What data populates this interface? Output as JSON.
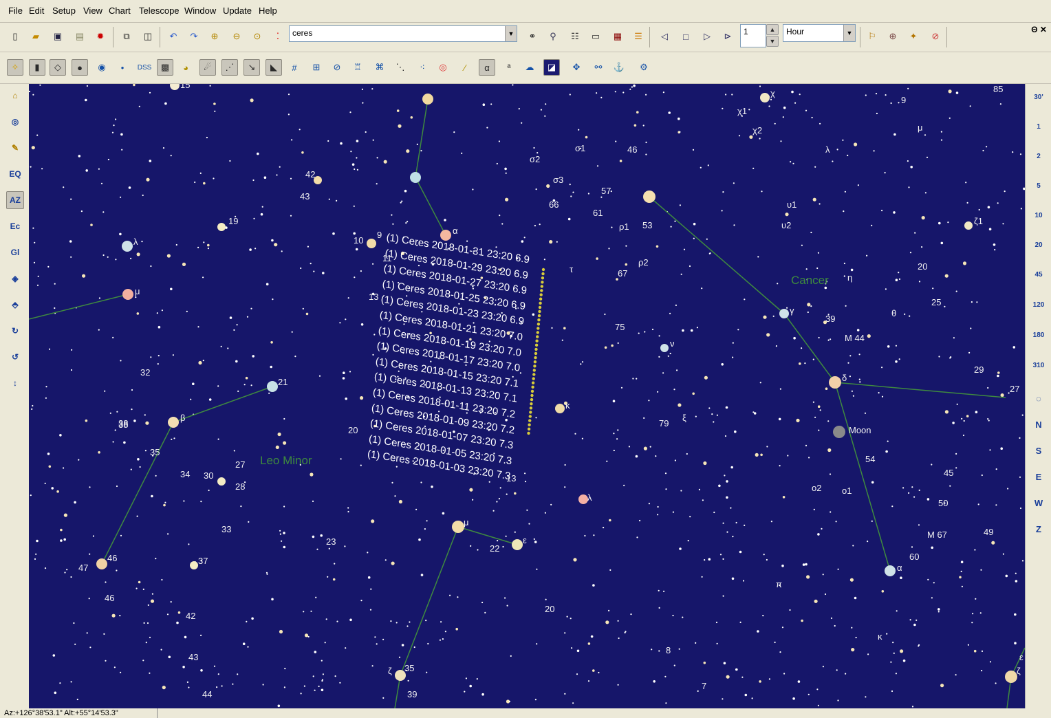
{
  "menu": [
    "File",
    "Edit",
    "Setup",
    "View",
    "Chart",
    "Telescope",
    "Window",
    "Update",
    "Help"
  ],
  "window_controls": "Θ ✕",
  "toolbar1": {
    "search_value": "ceres",
    "step_value": "1",
    "step_unit": "Hour",
    "icons": [
      "new-file-icon",
      "open-folder-icon",
      "save-icon",
      "print-icon",
      "settings-icon",
      "copy-icon",
      "layout-icon",
      "undo-icon",
      "redo-icon",
      "zoom-in-icon",
      "zoom-out-icon",
      "zoom-fit-icon",
      "colors-icon",
      "binoculars-icon",
      "find-icon",
      "list-icon",
      "window-icon",
      "calendar-icon",
      "list-color-icon",
      "previous-icon",
      "stop-icon",
      "next-icon",
      "fast-forward-icon",
      "spin-up-icon",
      "spin-down-icon",
      "telescope-icon",
      "target-icon",
      "animate-icon",
      "close-icon"
    ]
  },
  "toolbar2": {
    "dss_label": "DSS",
    "alpha_label": "α",
    "anchor_label": "⚓"
  },
  "left_toolbar": [
    "EQ",
    "AZ",
    "Ec",
    "Gl"
  ],
  "right_toolbar": {
    "scale": [
      "30'",
      "1",
      "2",
      "5",
      "10",
      "20",
      "45",
      "120",
      "180",
      "310"
    ],
    "directions": [
      "N",
      "S",
      "E",
      "W",
      "Z"
    ]
  },
  "sky": {
    "background": "#16166a",
    "constellation_line": "#3f8a3f",
    "constellations": [
      "Leo Minor",
      "Cancer"
    ],
    "star_labels": [
      "15",
      "38",
      "42",
      "43",
      "19",
      "λ",
      "μ",
      "32",
      "21",
      "38",
      "β",
      "35",
      "34",
      "30",
      "27",
      "28",
      "20",
      "33",
      "47",
      "46",
      "46",
      "37",
      "42",
      "43",
      "44",
      "23",
      "α",
      "10",
      "9",
      "11",
      "13",
      "σ2",
      "σ1",
      "σ3",
      "66",
      "46",
      "57",
      "61",
      "ρ1",
      "53",
      "ρ2",
      "67",
      "τ",
      "75",
      "ν",
      "κ",
      "79",
      "ξ",
      "13",
      "λ",
      "μ",
      "22",
      "ε",
      "20",
      "8",
      "7",
      "35",
      "ζ",
      "39",
      "χ1",
      "χ2",
      "χ",
      "υ1",
      "υ2",
      "δ",
      "γ",
      "η",
      "39",
      "θ",
      "20",
      "25",
      "M 44",
      "Moon",
      "54",
      "ο2",
      "ο1",
      "45",
      "50",
      "M 67",
      "49",
      "α",
      "60",
      "π",
      "29",
      "27",
      "κ",
      "85",
      "9",
      "μ",
      "λ",
      "ζ1",
      "ζ",
      "ε"
    ],
    "ceres_trail": [
      "(1) Ceres 2018-01-31 23:20 6.9",
      "(1) Ceres 2018-01-29 23:20 6.9",
      "(1) Ceres 2018-01-27 23:20 6.9",
      "(1) Ceres 2018-01-25 23:20 6.9",
      "(1) Ceres 2018-01-23 23:20 6.9",
      "(1) Ceres 2018-01-21 23:20 7.0",
      "(1) Ceres 2018-01-19 23:20 7.0",
      "(1) Ceres 2018-01-17 23:20 7.0",
      "(1) Ceres 2018-01-15 23:20 7.1",
      "(1) Ceres 2018-01-13 23:20 7.1",
      "(1) Ceres 2018-01-11 23:20 7.2",
      "(1) Ceres 2018-01-09 23:20 7.2",
      "(1) Ceres 2018-01-07 23:20 7.3",
      "(1) Ceres 2018-01-05 23:20 7.3",
      "(1) Ceres 2018-01-03 23:20 7.3"
    ]
  },
  "status": "Az:+126°38'53.1\" Alt:+55°14'53.3\""
}
